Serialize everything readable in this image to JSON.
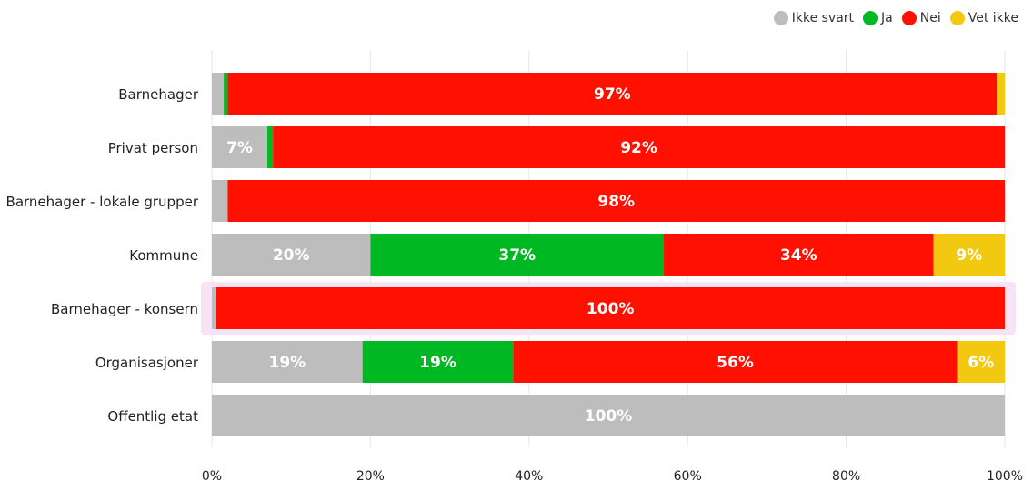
{
  "colors": {
    "ikke_svart": "#bdbdbd",
    "ja": "#00b822",
    "nei": "#ff1000",
    "vet_ikke": "#f2c811",
    "grid": "#e6e6e6",
    "highlight": "#f6e3f6"
  },
  "chart_data": {
    "type": "bar",
    "orientation": "horizontal",
    "stacked": "percent",
    "categories": [
      "Barnehager",
      "Privat person",
      "Barnehager - lokale grupper",
      "Kommune",
      "Barnehager - konsern",
      "Organisasjoner",
      "Offentlig etat"
    ],
    "series": [
      {
        "name": "Ikke svart",
        "values": [
          1.5,
          7,
          2,
          20,
          0.5,
          19,
          100
        ],
        "labels": [
          "",
          "7%",
          "",
          "20%",
          "",
          "19%",
          "100%"
        ]
      },
      {
        "name": "Ja",
        "values": [
          0.5,
          0.7,
          0,
          37,
          0,
          19,
          0
        ],
        "labels": [
          "",
          "",
          "",
          "37%",
          "",
          "19%",
          ""
        ]
      },
      {
        "name": "Nei",
        "values": [
          97,
          92.3,
          98,
          34,
          99.5,
          56,
          0
        ],
        "labels": [
          "97%",
          "92%",
          "98%",
          "34%",
          "100%",
          "56%",
          ""
        ]
      },
      {
        "name": "Vet ikke",
        "values": [
          1,
          0,
          0,
          9,
          0,
          6,
          0
        ],
        "labels": [
          "",
          "",
          "",
          "9%",
          "",
          "6%",
          ""
        ]
      }
    ],
    "xlim": [
      0,
      100
    ],
    "xticks": [
      "0%",
      "20%",
      "40%",
      "60%",
      "80%",
      "100%"
    ],
    "grid": true,
    "legend_position": "top-right",
    "highlighted_category": "Barnehager - konsern"
  }
}
